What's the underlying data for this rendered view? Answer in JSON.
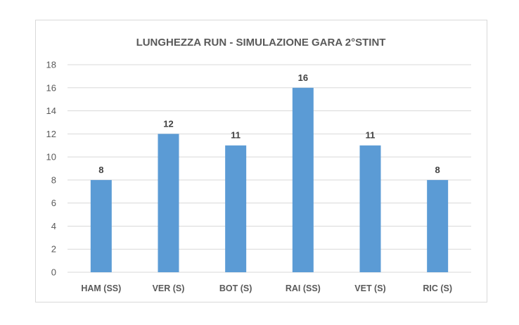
{
  "chart_data": {
    "type": "bar",
    "title": "LUNGHEZZA RUN - SIMULAZIONE GARA 2°STINT",
    "categories": [
      "HAM (SS)",
      "VER (S)",
      "BOT (S)",
      "RAI (SS)",
      "VET (S)",
      "RIC (S)"
    ],
    "values": [
      8,
      12,
      11,
      16,
      11,
      8
    ],
    "data_labels": [
      "8",
      "12",
      "11",
      "16",
      "11",
      "8"
    ],
    "ylim": [
      0,
      18
    ],
    "yticks": [
      0,
      2,
      4,
      6,
      8,
      10,
      12,
      14,
      16,
      18
    ],
    "ytick_labels": [
      "0",
      "2",
      "4",
      "6",
      "8",
      "10",
      "12",
      "14",
      "16",
      "18"
    ],
    "grid": true,
    "legend": "none",
    "bar_color": "#5b9bd5",
    "xlabel": "",
    "ylabel": ""
  }
}
